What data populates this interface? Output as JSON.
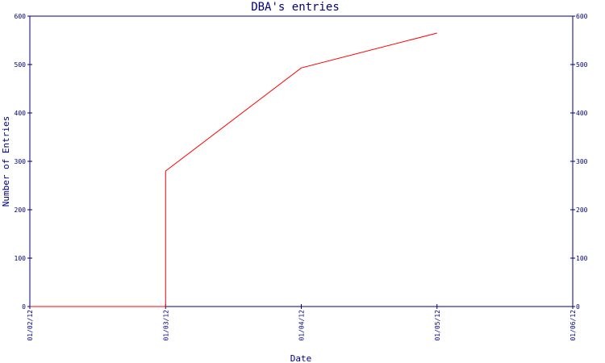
{
  "chart_data": {
    "type": "line",
    "title": "DBA's entries",
    "xlabel": "Date",
    "ylabel": "Number of Entries",
    "x_ticks": [
      "01/02/12",
      "01/03/12",
      "01/04/12",
      "01/05/12",
      "01/06/12"
    ],
    "y_ticks": [
      "0",
      "100",
      "200",
      "300",
      "400",
      "500",
      "600"
    ],
    "ylim": [
      0,
      600
    ],
    "xlim": [
      "2012-01-02",
      "2012-01-06"
    ],
    "grid": false,
    "series": [
      {
        "color": "#ff0000",
        "points": [
          {
            "x": "2012-01-02",
            "y": 0
          },
          {
            "x": "2012-01-03",
            "y": 0
          },
          {
            "x": "2012-01-03",
            "y": 280
          },
          {
            "x": "2012-01-04",
            "y": 493
          },
          {
            "x": "2012-01-05",
            "y": 565
          }
        ]
      }
    ],
    "colors": {
      "axis": "#000080",
      "text": "#000080",
      "line": "#ff0000"
    }
  }
}
